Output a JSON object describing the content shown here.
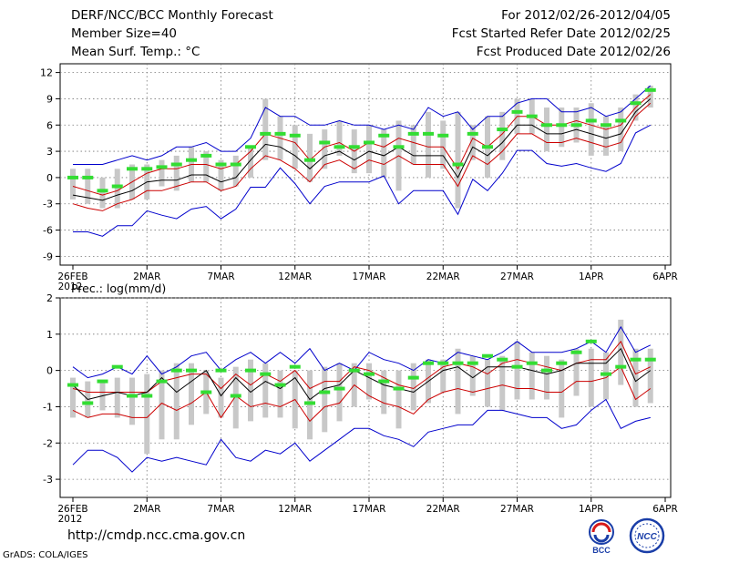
{
  "header": {
    "title": "DERF/NCC/BCC Monthly Forecast",
    "member_size": "Member Size=40",
    "variable": "Mean Surf. Temp.: °C",
    "forecast_period": "For 2012/02/26-2012/04/05",
    "fcst_started": "Fcst Started Refer Date 2012/02/25",
    "fcst_produced": "Fcst Produced Date 2012/02/26"
  },
  "footer": {
    "url": "http://cmdp.ncc.cma.gov.cn",
    "credit": "GrADS: COLA/IGES",
    "logo_left_text": "BCC",
    "logo_right_text": "NCC"
  },
  "colors": {
    "mean": "#000000",
    "spread": "#cc0000",
    "extreme": "#0000cc",
    "box": "#c8c8c8",
    "observed": "#33dd33",
    "grid": "#777777"
  },
  "chart_data": [
    {
      "type": "line",
      "title": "Mean Surf. Temp.: °C",
      "xlabel": "",
      "ylabel": "°C",
      "ylim": [
        -10,
        13
      ],
      "yticks": [
        12,
        9,
        6,
        3,
        0,
        -3,
        -6,
        -9
      ],
      "xticks": [
        {
          "day": 0,
          "label": "26FEB",
          "sub": "2012"
        },
        {
          "day": 5,
          "label": "2MAR"
        },
        {
          "day": 10,
          "label": "7MAR"
        },
        {
          "day": 15,
          "label": "12MAR"
        },
        {
          "day": 20,
          "label": "17MAR"
        },
        {
          "day": 25,
          "label": "22MAR"
        },
        {
          "day": 30,
          "label": "27MAR"
        },
        {
          "day": 35,
          "label": "1APR"
        },
        {
          "day": 40,
          "label": "6APR"
        }
      ],
      "x": [
        0,
        1,
        2,
        3,
        4,
        5,
        6,
        7,
        8,
        9,
        10,
        11,
        12,
        13,
        14,
        15,
        16,
        17,
        18,
        19,
        20,
        21,
        22,
        23,
        24,
        25,
        26,
        27,
        28,
        29,
        30,
        31,
        32,
        33,
        34,
        35,
        36,
        37,
        38,
        39
      ],
      "series": [
        {
          "name": "max",
          "values": [
            1.5,
            1.5,
            1.5,
            2,
            2.5,
            2,
            2.5,
            3.5,
            3.5,
            4,
            3,
            3,
            4.5,
            8,
            7,
            7,
            6,
            6,
            6.5,
            6,
            6,
            5.5,
            6,
            5.5,
            8,
            7,
            7.5,
            5.5,
            7,
            7,
            8.5,
            9,
            9,
            7.5,
            7.5,
            8,
            7,
            7.5,
            9,
            10.5
          ]
        },
        {
          "name": "upper",
          "values": [
            -1,
            -1.5,
            -2,
            -1.5,
            -0.5,
            0.5,
            1,
            1,
            1.5,
            1.5,
            1,
            1.5,
            3,
            5,
            4.5,
            4,
            2,
            3.5,
            4,
            3,
            4,
            3.5,
            4.5,
            4,
            3.5,
            3.5,
            1,
            4.5,
            3.5,
            5,
            7,
            7,
            6,
            6,
            6.5,
            6,
            5.5,
            6,
            8,
            9.5
          ]
        },
        {
          "name": "mean",
          "values": [
            -2,
            -2.3,
            -2.6,
            -2,
            -1.5,
            -0.5,
            -0.3,
            -0.3,
            0.3,
            0.3,
            -0.5,
            0,
            2,
            3.8,
            3.5,
            2.5,
            1,
            2.5,
            3,
            2,
            3,
            2.5,
            3.5,
            2.5,
            2.5,
            2.5,
            0,
            3.5,
            2.5,
            4,
            6,
            6,
            5,
            5,
            5.5,
            5,
            4.5,
            5,
            7.5,
            9
          ]
        },
        {
          "name": "lower",
          "values": [
            -3,
            -3.5,
            -3.8,
            -3,
            -2.5,
            -1.5,
            -1.5,
            -1,
            -0.5,
            -0.5,
            -1.5,
            -1,
            1,
            2.5,
            2,
            1,
            -0.5,
            1.5,
            2,
            1,
            2,
            1.5,
            2.5,
            1.5,
            1.5,
            1.5,
            -1,
            2.5,
            1.5,
            3,
            5,
            5,
            4,
            4,
            4.5,
            4,
            3.5,
            4,
            7,
            8.5
          ]
        },
        {
          "name": "min",
          "values": [
            -6.2,
            -6.2,
            -6.7,
            -5.5,
            -5.5,
            -3.8,
            -4.3,
            -4.7,
            -3.6,
            -3.3,
            -4.7,
            -3.6,
            -1.1,
            -1.1,
            1.1,
            -0.7,
            -3,
            -1,
            -0.5,
            -0.5,
            -0.5,
            0.2,
            -3,
            -1.5,
            -1.5,
            -1.5,
            -4.2,
            -0.2,
            -1.5,
            0.5,
            3.1,
            3.1,
            1.6,
            1.3,
            1.6,
            1.1,
            0.7,
            1.6,
            5.1,
            6
          ]
        },
        {
          "name": "box_top",
          "values": [
            1,
            1,
            0,
            1,
            1.5,
            1.5,
            2,
            2.5,
            3.5,
            3,
            2,
            2.5,
            3.5,
            9,
            7,
            6,
            5,
            5.5,
            6.5,
            5.5,
            6,
            5.5,
            6.5,
            6,
            7.5,
            6.5,
            7.5,
            6,
            7,
            7.5,
            9,
            9,
            8,
            8,
            8,
            8.5,
            7,
            8,
            9.5,
            10.5
          ]
        },
        {
          "name": "box_bottom",
          "values": [
            -2.5,
            -3,
            -3.5,
            -3.5,
            -2.5,
            -2.5,
            -1,
            -1.5,
            -0.5,
            -0.5,
            -1.5,
            -1,
            0,
            2,
            2,
            1,
            -0.5,
            1,
            2.5,
            0.5,
            0.5,
            0,
            -1.5,
            1.5,
            0,
            1,
            -3.5,
            2,
            0,
            2,
            5,
            5,
            3,
            3.5,
            4,
            2.5,
            2.5,
            3,
            6.5,
            8
          ]
        },
        {
          "name": "observed",
          "values": [
            0,
            0,
            -1.5,
            -1,
            1,
            1,
            1.2,
            1.5,
            2,
            2.5,
            1.5,
            1.5,
            3.5,
            5,
            5,
            4.8,
            2,
            4,
            3.5,
            3.5,
            4,
            4.8,
            3.5,
            5,
            5,
            4.8,
            1.5,
            5,
            3.5,
            5.5,
            7.5,
            7,
            6,
            6,
            6,
            6.5,
            6,
            6.5,
            8.5,
            10
          ]
        }
      ]
    },
    {
      "type": "line",
      "title": "Prec.: log(mm/d)",
      "xlabel": "",
      "ylabel": "log(mm/d)",
      "ylim": [
        -3.5,
        2
      ],
      "yticks": [
        2,
        1,
        0,
        -1,
        -2,
        -3
      ],
      "xticks": [
        {
          "day": 0,
          "label": "26FEB",
          "sub": "2012"
        },
        {
          "day": 5,
          "label": "2MAR"
        },
        {
          "day": 10,
          "label": "7MAR"
        },
        {
          "day": 15,
          "label": "12MAR"
        },
        {
          "day": 20,
          "label": "17MAR"
        },
        {
          "day": 25,
          "label": "22MAR"
        },
        {
          "day": 30,
          "label": "27MAR"
        },
        {
          "day": 35,
          "label": "1APR"
        },
        {
          "day": 40,
          "label": "6APR"
        }
      ],
      "x": [
        0,
        1,
        2,
        3,
        4,
        5,
        6,
        7,
        8,
        9,
        10,
        11,
        12,
        13,
        14,
        15,
        16,
        17,
        18,
        19,
        20,
        21,
        22,
        23,
        24,
        25,
        26,
        27,
        28,
        29,
        30,
        31,
        32,
        33,
        34,
        35,
        36,
        37,
        38,
        39
      ],
      "series": [
        {
          "name": "max",
          "values": [
            0.1,
            -0.2,
            -0.1,
            0.1,
            -0.1,
            0.4,
            -0.1,
            0.1,
            0.4,
            0.5,
            0,
            0.3,
            0.5,
            0.2,
            0.5,
            0.2,
            0.6,
            0,
            0.2,
            0,
            0.5,
            0.3,
            0.2,
            0,
            0.3,
            0.2,
            0.5,
            0.4,
            0.3,
            0.5,
            0.8,
            0.5,
            0.5,
            0.5,
            0.6,
            0.8,
            0.5,
            1.2,
            0.5,
            0.7
          ]
        },
        {
          "name": "upper",
          "values": [
            -0.5,
            -0.6,
            -0.6,
            -0.6,
            -0.6,
            -0.6,
            -0.3,
            -0.2,
            -0.1,
            -0.1,
            -0.5,
            -0.1,
            -0.4,
            -0.1,
            -0.3,
            0,
            -0.5,
            -0.3,
            -0.3,
            0.1,
            0,
            -0.2,
            -0.4,
            -0.5,
            -0.2,
            0.1,
            0.2,
            0.1,
            -0.1,
            0.2,
            0.3,
            0.2,
            0.1,
            0,
            0.2,
            0.3,
            0.3,
            0.8,
            -0.1,
            0.1
          ]
        },
        {
          "name": "mean",
          "values": [
            -0.4,
            -0.8,
            -0.7,
            -0.6,
            -0.7,
            -0.6,
            -0.2,
            -0.6,
            -0.3,
            0,
            -0.7,
            -0.2,
            -0.6,
            -0.3,
            -0.5,
            -0.2,
            -0.8,
            -0.5,
            -0.4,
            0,
            -0.2,
            -0.4,
            -0.5,
            -0.6,
            -0.3,
            0,
            0.1,
            -0.2,
            0.1,
            0.1,
            0.1,
            0,
            -0.1,
            0,
            0.2,
            0.2,
            0.2,
            0.6,
            -0.3,
            0
          ]
        },
        {
          "name": "lower",
          "values": [
            -1.1,
            -1.3,
            -1.2,
            -1.2,
            -1.3,
            -1.3,
            -0.9,
            -1.1,
            -0.9,
            -0.6,
            -1.3,
            -0.7,
            -1,
            -0.9,
            -1,
            -0.8,
            -1.4,
            -1,
            -0.9,
            -0.4,
            -0.7,
            -0.9,
            -1,
            -1.2,
            -0.8,
            -0.6,
            -0.5,
            -0.6,
            -0.5,
            -0.4,
            -0.5,
            -0.5,
            -0.6,
            -0.6,
            -0.3,
            -0.3,
            -0.2,
            0.1,
            -0.8,
            -0.5
          ]
        },
        {
          "name": "min",
          "values": [
            -2.6,
            -2.2,
            -2.2,
            -2.4,
            -2.8,
            -2.4,
            -2.5,
            -2.4,
            -2.5,
            -2.6,
            -1.9,
            -2.4,
            -2.5,
            -2.2,
            -2.3,
            -2,
            -2.5,
            -2.2,
            -1.9,
            -1.6,
            -1.6,
            -1.8,
            -1.9,
            -2.1,
            -1.7,
            -1.6,
            -1.5,
            -1.5,
            -1.1,
            -1.1,
            -1.2,
            -1.3,
            -1.3,
            -1.6,
            -1.5,
            -1.1,
            -0.8,
            -1.6,
            -1.4,
            -1.3
          ]
        },
        {
          "name": "box_top",
          "values": [
            -0.2,
            -0.3,
            -0.3,
            -0.2,
            -0.2,
            -0.1,
            0,
            0.2,
            0.2,
            0,
            -0.2,
            0.1,
            0.3,
            0.2,
            0,
            0,
            0,
            0.1,
            0.2,
            0.2,
            0.2,
            0,
            0,
            0.2,
            0.3,
            0.3,
            0.6,
            0.4,
            0.3,
            0.4,
            0.8,
            0.5,
            0.4,
            0.3,
            0.6,
            0.6,
            0.5,
            1.4,
            0.6,
            0.6
          ]
        },
        {
          "name": "box_bottom",
          "values": [
            -1.3,
            -1.3,
            -1.1,
            -1.3,
            -1.5,
            -2.3,
            -1.9,
            -1.9,
            -1.5,
            -1.2,
            -1.3,
            -1.6,
            -1.4,
            -1.3,
            -1.3,
            -1.6,
            -1.9,
            -1.7,
            -1.4,
            -1,
            -0.8,
            -1.2,
            -1.6,
            -1.1,
            -0.9,
            -0.6,
            -1.2,
            -0.7,
            -1,
            -1.1,
            -0.8,
            -0.8,
            -0.8,
            -1.3,
            -0.7,
            -1,
            -0.8,
            -0.4,
            -1,
            -0.9
          ]
        },
        {
          "name": "observed",
          "values": [
            -0.4,
            -0.9,
            -0.3,
            0.1,
            -0.7,
            -0.7,
            -0.3,
            0,
            0,
            -0.6,
            0,
            -0.7,
            0,
            -0.1,
            -0.4,
            0.1,
            -0.9,
            -0.6,
            -0.5,
            0,
            -0.1,
            -0.3,
            -0.5,
            -0.2,
            0.2,
            0.2,
            0.2,
            0.2,
            0.4,
            0.3,
            0.1,
            0.2,
            0,
            0.2,
            0.5,
            0.8,
            -0.1,
            0.1,
            0.3,
            0.3
          ]
        }
      ]
    }
  ]
}
